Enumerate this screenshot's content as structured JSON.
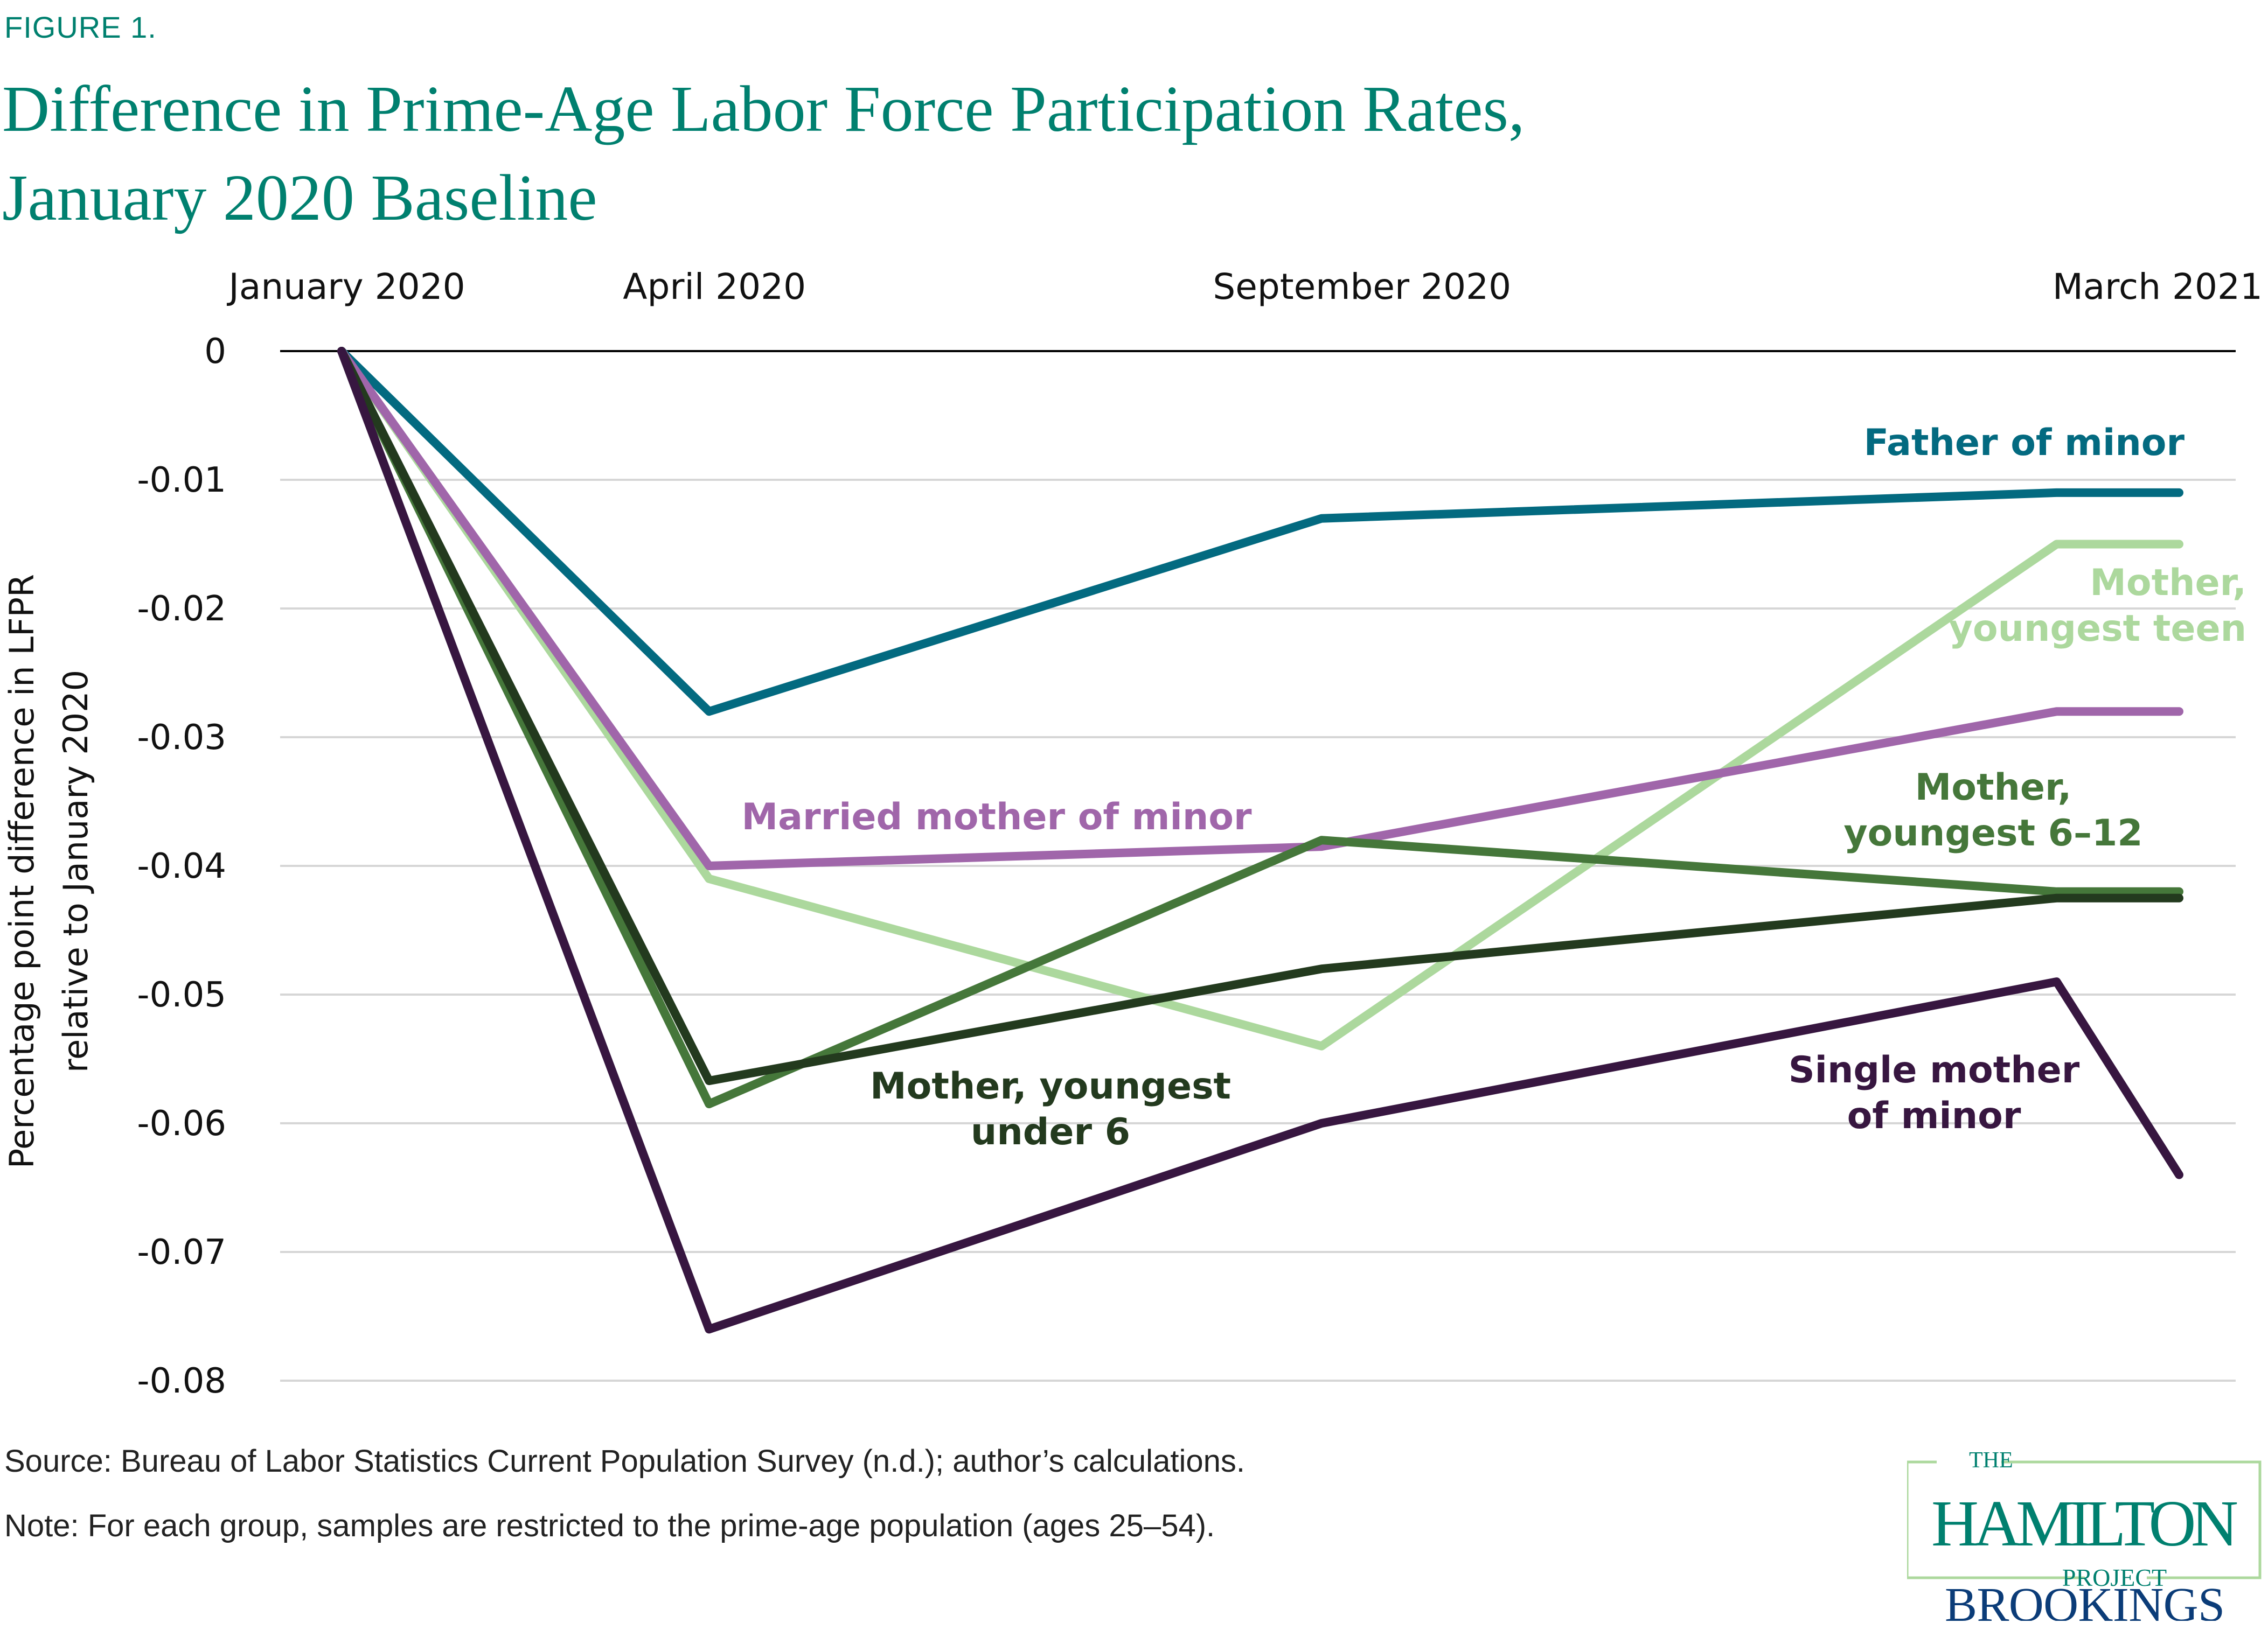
{
  "figure_label": "FIGURE 1.",
  "title_line1": "Difference in Prime-Age Labor Force Participation Rates,",
  "title_line2": "January 2020 Baseline",
  "source": "Source:  Bureau of Labor Statistics Current Population Survey (n.d.); author’s calculations.",
  "note": "Note: For each group, samples are restricted to the prime-age population (ages 25–54).",
  "logo": {
    "the": "THE",
    "hamilton": "HAMILTON",
    "project": "PROJECT",
    "brookings": "BROOKINGS"
  },
  "chart_data": {
    "type": "line",
    "title": "Difference in Prime-Age Labor Force Participation Rates, January 2020 Baseline",
    "xlabel": "",
    "ylabel_line1": "Percentage point difference in LFPR",
    "ylabel_line2": "relative to January 2020",
    "x_months": [
      0,
      3,
      8,
      14,
      15
    ],
    "x_tick_months": [
      0,
      3,
      8,
      14
    ],
    "x_tick_labels": [
      "January 2020",
      "April 2020",
      "September 2020",
      "March 2021"
    ],
    "x_range": [
      0,
      15
    ],
    "ylim": [
      -0.08,
      0
    ],
    "y_ticks": [
      0,
      -0.01,
      -0.02,
      -0.03,
      -0.04,
      -0.05,
      -0.06,
      -0.07,
      -0.08
    ],
    "y_tick_labels": [
      "0",
      "-0.01",
      "-0.02",
      "-0.03",
      "-0.04",
      "-0.05",
      "-0.06",
      "-0.07",
      "-0.08"
    ],
    "grid": true,
    "legend": "inline-labels",
    "series": [
      {
        "name": "Father of minor",
        "label_lines": [
          "Father of minor"
        ],
        "color": "#036a80",
        "values": [
          0,
          -0.028,
          -0.013,
          -0.011,
          -0.011
        ]
      },
      {
        "name": "Married mother of minor",
        "label_lines": [
          "Married mother of minor"
        ],
        "color": "#a066aa",
        "values": [
          0,
          -0.04,
          -0.0385,
          -0.028,
          -0.028
        ]
      },
      {
        "name": "Mother, youngest teen",
        "label_lines": [
          "Mother,",
          "youngest teen"
        ],
        "color": "#acd89d",
        "values": [
          0,
          -0.041,
          -0.054,
          -0.015,
          -0.015
        ]
      },
      {
        "name": "Mother, youngest 6–12",
        "label_lines": [
          "Mother,",
          "youngest 6–12"
        ],
        "color": "#45773a",
        "values": [
          0,
          -0.0585,
          -0.038,
          -0.042,
          -0.042
        ]
      },
      {
        "name": "Mother, youngest under 6",
        "label_lines": [
          "Mother, youngest",
          "under 6"
        ],
        "color": "#233a1e",
        "values": [
          0,
          -0.0567,
          -0.048,
          -0.0425,
          -0.0425
        ]
      },
      {
        "name": "Single mother of minor",
        "label_lines": [
          "Single mother",
          "of minor"
        ],
        "color": "#371640",
        "values": [
          0,
          -0.076,
          -0.06,
          -0.049,
          -0.064
        ]
      }
    ]
  }
}
